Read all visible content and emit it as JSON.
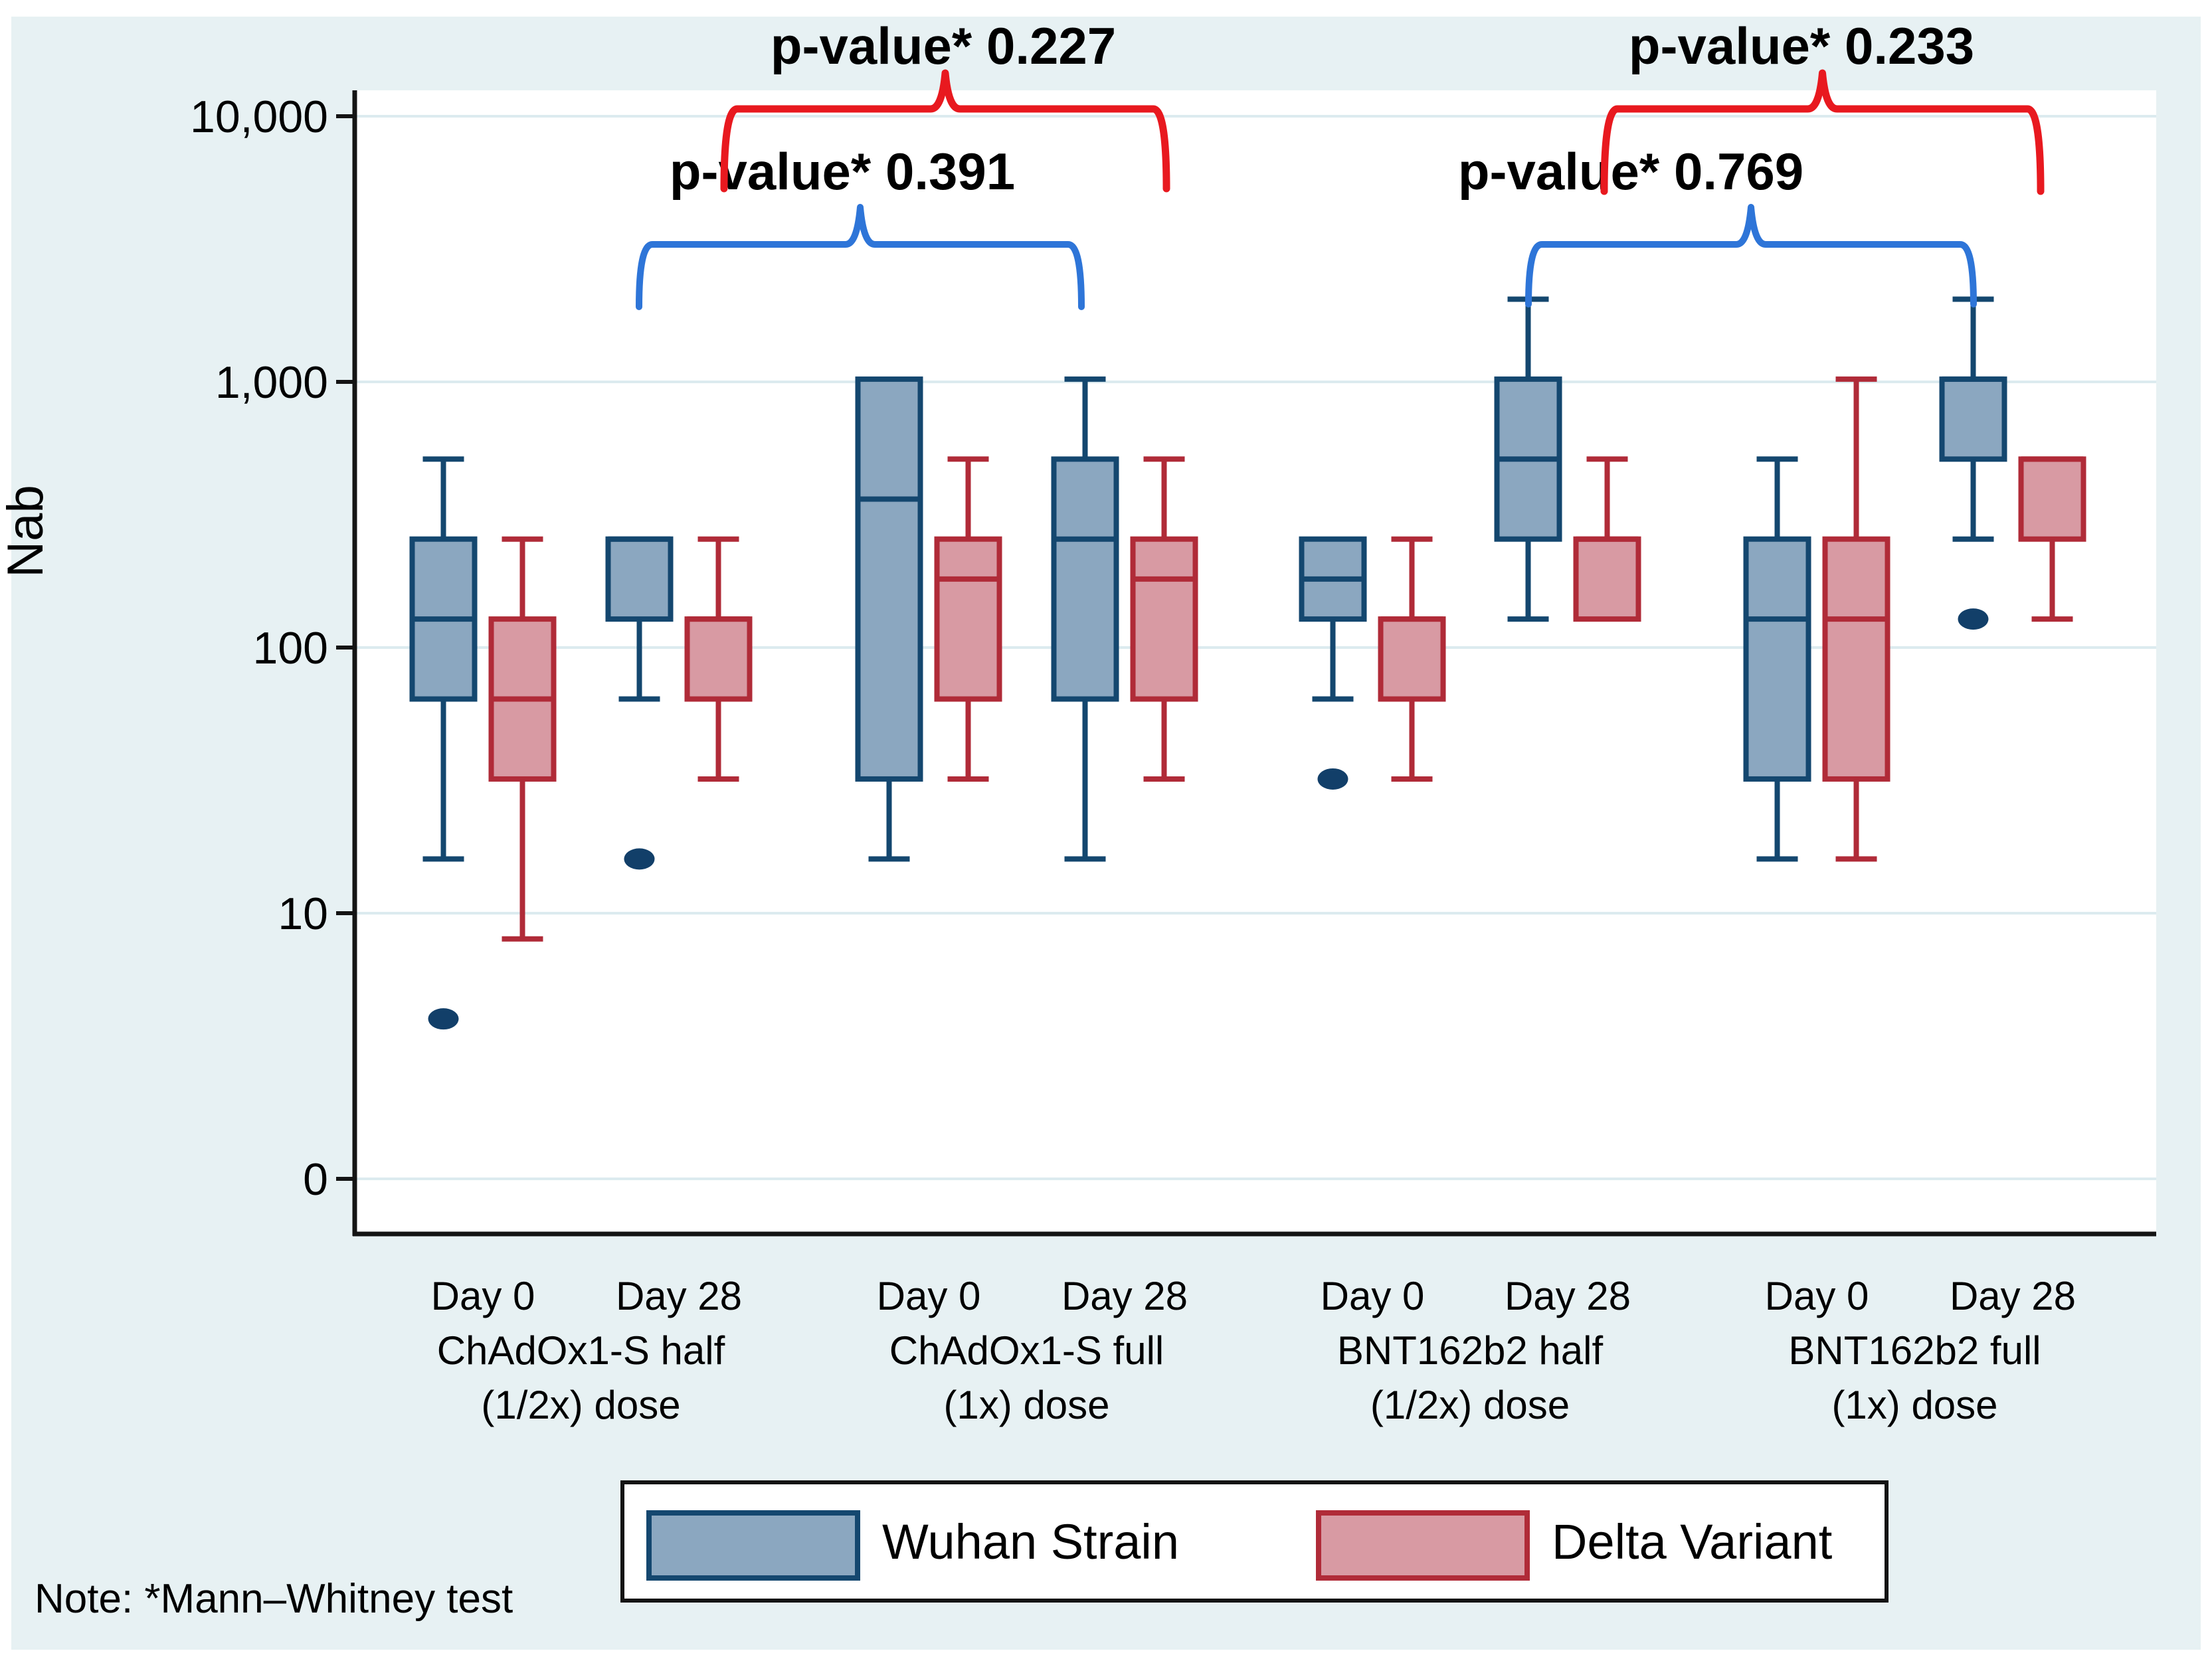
{
  "chart_data": {
    "type": "boxplot",
    "title": "",
    "ylabel": "Nab",
    "y_scale": "log",
    "grid": "horizontal",
    "legend_position": "bottom",
    "note": "Note: *Mann–Whitney test",
    "y_ticks": [
      {
        "label": "10,000",
        "value": 10000
      },
      {
        "label": "1,000",
        "value": 1000
      },
      {
        "label": "100",
        "value": 100
      },
      {
        "label": "10",
        "value": 10
      },
      {
        "label": "0",
        "value": 0
      }
    ],
    "series": [
      {
        "name": "Wuhan Strain",
        "fill": "#8BA7C0",
        "stroke": "#14476F"
      },
      {
        "name": "Delta Variant",
        "fill": "#D89AA3",
        "stroke": "#B02B38"
      }
    ],
    "groups": [
      {
        "vaccine": "ChAdOx1-S half",
        "dose": "(1/2x) dose",
        "timepoints": [
          "Day 0",
          "Day 28"
        ]
      },
      {
        "vaccine": "ChAdOx1-S full",
        "dose": "(1x) dose",
        "timepoints": [
          "Day 0",
          "Day 28"
        ]
      },
      {
        "vaccine": "BNT162b2 half",
        "dose": "(1/2x) dose",
        "timepoints": [
          "Day 0",
          "Day 28"
        ]
      },
      {
        "vaccine": "BNT162b2 full",
        "dose": "(1x) dose",
        "timepoints": [
          "Day 0",
          "Day 28"
        ]
      }
    ],
    "boxes": [
      {
        "group": 0,
        "timepoint": "Day 0",
        "series": 0,
        "min": 16,
        "q1": 64,
        "median": 128,
        "q3": 256,
        "max": 512,
        "outliers": [
          4
        ]
      },
      {
        "group": 0,
        "timepoint": "Day 0",
        "series": 1,
        "min": 8,
        "q1": 32,
        "median": 64,
        "q3": 128,
        "max": 256,
        "outliers": []
      },
      {
        "group": 0,
        "timepoint": "Day 28",
        "series": 0,
        "min": 64,
        "q1": 128,
        "median": 256,
        "q3": 256,
        "max": 256,
        "outliers": [
          16
        ]
      },
      {
        "group": 0,
        "timepoint": "Day 28",
        "series": 1,
        "min": 32,
        "q1": 64,
        "median": 128,
        "q3": 128,
        "max": 256,
        "outliers": []
      },
      {
        "group": 1,
        "timepoint": "Day 0",
        "series": 0,
        "min": 16,
        "q1": 32,
        "median": 362,
        "q3": 1024,
        "max": 1024,
        "outliers": []
      },
      {
        "group": 1,
        "timepoint": "Day 0",
        "series": 1,
        "min": 32,
        "q1": 64,
        "median": 181,
        "q3": 256,
        "max": 512,
        "outliers": []
      },
      {
        "group": 1,
        "timepoint": "Day 28",
        "series": 0,
        "min": 16,
        "q1": 64,
        "median": 256,
        "q3": 512,
        "max": 1024,
        "outliers": []
      },
      {
        "group": 1,
        "timepoint": "Day 28",
        "series": 1,
        "min": 32,
        "q1": 64,
        "median": 181,
        "q3": 256,
        "max": 512,
        "outliers": []
      },
      {
        "group": 2,
        "timepoint": "Day 0",
        "series": 0,
        "min": 64,
        "q1": 128,
        "median": 181,
        "q3": 256,
        "max": 256,
        "outliers": [
          32
        ]
      },
      {
        "group": 2,
        "timepoint": "Day 0",
        "series": 1,
        "min": 32,
        "q1": 64,
        "median": 128,
        "q3": 128,
        "max": 256,
        "outliers": []
      },
      {
        "group": 2,
        "timepoint": "Day 28",
        "series": 0,
        "min": 128,
        "q1": 256,
        "median": 512,
        "q3": 1024,
        "max": 2048,
        "outliers": []
      },
      {
        "group": 2,
        "timepoint": "Day 28",
        "series": 1,
        "min": 128,
        "q1": 128,
        "median": 256,
        "q3": 256,
        "max": 512,
        "outliers": []
      },
      {
        "group": 3,
        "timepoint": "Day 0",
        "series": 0,
        "min": 16,
        "q1": 32,
        "median": 128,
        "q3": 256,
        "max": 512,
        "outliers": []
      },
      {
        "group": 3,
        "timepoint": "Day 0",
        "series": 1,
        "min": 16,
        "q1": 32,
        "median": 128,
        "q3": 256,
        "max": 1024,
        "outliers": []
      },
      {
        "group": 3,
        "timepoint": "Day 28",
        "series": 0,
        "min": 256,
        "q1": 512,
        "median": 1024,
        "q3": 1024,
        "max": 2048,
        "outliers": [
          128
        ]
      },
      {
        "group": 3,
        "timepoint": "Day 28",
        "series": 1,
        "min": 128,
        "q1": 256,
        "median": 512,
        "q3": 512,
        "max": 512,
        "outliers": []
      }
    ],
    "comparisons": [
      {
        "label": "p-value* 0.391",
        "series": "Wuhan Strain",
        "between": [
          "ChAdOx1-S half Day 28",
          "ChAdOx1-S full Day 28"
        ],
        "color": "#2E75D8"
      },
      {
        "label": "p-value* 0.227",
        "series": "Delta Variant",
        "between": [
          "ChAdOx1-S half Day 28",
          "ChAdOx1-S full Day 28"
        ],
        "color": "#E8191F"
      },
      {
        "label": "p-value* 0.769",
        "series": "Wuhan Strain",
        "between": [
          "BNT162b2 half Day 28",
          "BNT162b2 full Day 28"
        ],
        "color": "#2E75D8"
      },
      {
        "label": "p-value* 0.233",
        "series": "Delta Variant",
        "between": [
          "BNT162b2 half Day 28",
          "BNT162b2 full Day 28"
        ],
        "color": "#E8191F"
      }
    ],
    "colors": {
      "figure_background": "#E7F1F3",
      "plot_background": "#FFFFFF",
      "gridline": "#DCEBEF",
      "axis": "#141414",
      "outlier_dot": "#123F69"
    }
  }
}
